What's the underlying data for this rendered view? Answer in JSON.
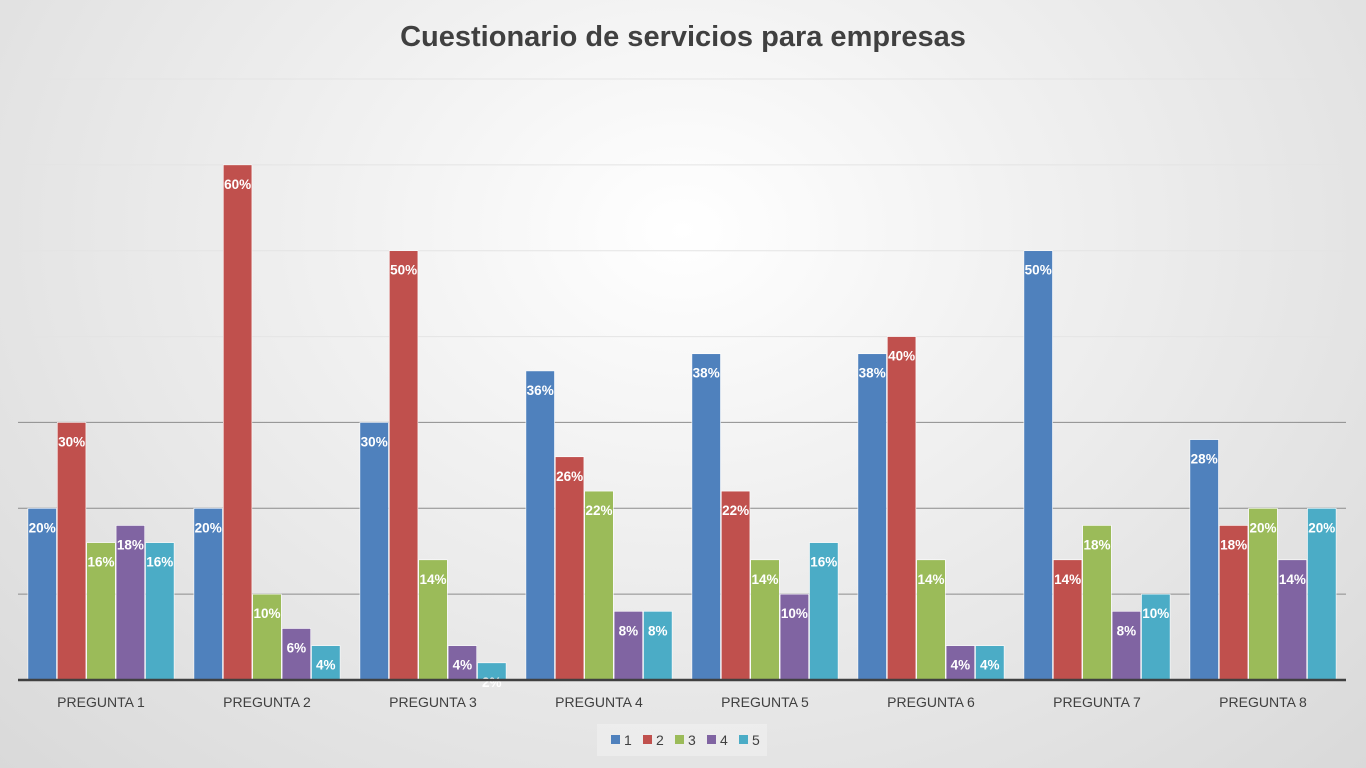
{
  "chart_data": {
    "type": "bar",
    "title": "Cuestionario de servicios para empresas",
    "categories": [
      "PREGUNTA 1",
      "PREGUNTA 2",
      "PREGUNTA 3",
      "PREGUNTA 4",
      "PREGUNTA 5",
      "PREGUNTA 6",
      "PREGUNTA 7",
      "PREGUNTA 8"
    ],
    "series": [
      {
        "name": "1",
        "color": "#4f81bd",
        "values": [
          20,
          20,
          30,
          36,
          38,
          38,
          50,
          28
        ]
      },
      {
        "name": "2",
        "color": "#c0504d",
        "values": [
          30,
          60,
          50,
          26,
          22,
          40,
          14,
          18
        ]
      },
      {
        "name": "3",
        "color": "#9bbb59",
        "values": [
          16,
          10,
          14,
          22,
          14,
          14,
          18,
          20
        ]
      },
      {
        "name": "4",
        "color": "#8064a2",
        "values": [
          18,
          6,
          4,
          8,
          10,
          4,
          8,
          14
        ]
      },
      {
        "name": "5",
        "color": "#4bacc6",
        "values": [
          16,
          4,
          2,
          8,
          16,
          4,
          10,
          20
        ]
      }
    ],
    "value_suffix": "%",
    "ylim": [
      0,
      70
    ],
    "ytick_step": 10,
    "grid": true,
    "legend_position": "bottom",
    "xlabel": "",
    "ylabel": ""
  }
}
